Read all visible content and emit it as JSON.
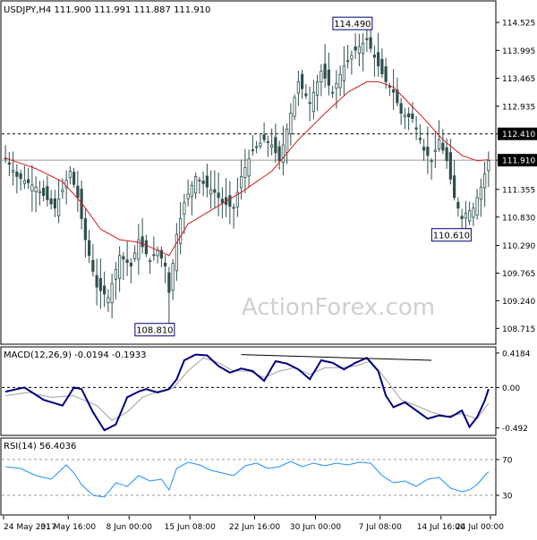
{
  "header": {
    "main": "USDJPY,H4  111.900 111.991 111.887 111.910",
    "macd": "MACD(12,26,9) -0.0194 -0.1933",
    "rsi": "RSI(14) 56.4036"
  },
  "watermark": "ActionForex.com",
  "colors": {
    "bull": "#2f4f4f",
    "ma": "#d41b1b",
    "macd_line": "#000080",
    "signal": "#a0a0a0",
    "rsi": "#1e90ff",
    "label_border": "#000080",
    "label_bg": "#000000"
  },
  "chart_data": [
    {
      "type": "candlestick",
      "title": "USDJPY,H4",
      "ohlc_readout": {
        "open": 111.9,
        "high": 111.991,
        "low": 111.887,
        "close": 111.91
      },
      "ylim": [
        108.5,
        114.85
      ],
      "y_ticks": [
        "114.525",
        "113.995",
        "113.465",
        "112.935",
        "112.410",
        "111.910",
        "111.355",
        "110.830",
        "110.290",
        "109.765",
        "109.240",
        "108.715"
      ],
      "x_ticks": [
        "24 May 2017",
        "31 May 16:00",
        "8 Jun 00:00",
        "15 Jun 08:00",
        "22 Jun 16:00",
        "30 Jun 00:00",
        "7 Jul 08:00",
        "14 Jul 16:00",
        "24 Jul 00:00"
      ],
      "annotations": [
        {
          "text": "114.490",
          "value": 114.49,
          "bar": 95
        },
        {
          "text": "108.810",
          "value": 108.81,
          "bar": 43
        },
        {
          "text": "110.610",
          "value": 110.61,
          "bar": 121
        }
      ],
      "levels": [
        {
          "text": "112.410",
          "value": 112.41,
          "style": "dashed",
          "highlight": true
        },
        {
          "text": "111.910",
          "value": 111.91,
          "style": "solid",
          "highlight": true
        }
      ],
      "close_path": [
        [
          0,
          111.95
        ],
        [
          3,
          111.6
        ],
        [
          8,
          111.4
        ],
        [
          13,
          111.0
        ],
        [
          17,
          111.7
        ],
        [
          19,
          111.2
        ],
        [
          21,
          110.4
        ],
        [
          24,
          109.5
        ],
        [
          27,
          109.3
        ],
        [
          30,
          110.1
        ],
        [
          33,
          109.9
        ],
        [
          35,
          110.4
        ],
        [
          38,
          110.0
        ],
        [
          40,
          110.2
        ],
        [
          42,
          109.9
        ],
        [
          43,
          109.4
        ],
        [
          45,
          110.5
        ],
        [
          47,
          111.1
        ],
        [
          50,
          111.6
        ],
        [
          53,
          111.4
        ],
        [
          55,
          111.3
        ],
        [
          57,
          111.1
        ],
        [
          60,
          111.0
        ],
        [
          62,
          111.6
        ],
        [
          65,
          112.1
        ],
        [
          68,
          112.3
        ],
        [
          70,
          112.2
        ],
        [
          72,
          111.9
        ],
        [
          74,
          112.5
        ],
        [
          77,
          113.4
        ],
        [
          80,
          113.0
        ],
        [
          83,
          113.6
        ],
        [
          86,
          113.2
        ],
        [
          89,
          113.7
        ],
        [
          92,
          114.0
        ],
        [
          95,
          114.2
        ],
        [
          98,
          113.7
        ],
        [
          100,
          113.4
        ],
        [
          102,
          113.2
        ],
        [
          104,
          112.8
        ],
        [
          107,
          112.7
        ],
        [
          110,
          112.1
        ],
        [
          112,
          111.9
        ],
        [
          114,
          112.3
        ],
        [
          116,
          111.9
        ],
        [
          118,
          111.2
        ],
        [
          120,
          110.8
        ],
        [
          121,
          110.9
        ],
        [
          123,
          111.0
        ],
        [
          125,
          111.4
        ],
        [
          127,
          111.9
        ]
      ],
      "ma_path": [
        [
          0,
          111.95
        ],
        [
          8,
          111.75
        ],
        [
          15,
          111.5
        ],
        [
          20,
          111.1
        ],
        [
          25,
          110.6
        ],
        [
          30,
          110.4
        ],
        [
          35,
          110.35
        ],
        [
          40,
          110.2
        ],
        [
          43,
          110.1
        ],
        [
          48,
          110.7
        ],
        [
          55,
          111.0
        ],
        [
          62,
          111.3
        ],
        [
          70,
          111.7
        ],
        [
          77,
          112.3
        ],
        [
          84,
          112.8
        ],
        [
          90,
          113.2
        ],
        [
          95,
          113.4
        ],
        [
          98,
          113.4
        ],
        [
          102,
          113.3
        ],
        [
          106,
          113.0
        ],
        [
          110,
          112.7
        ],
        [
          115,
          112.3
        ],
        [
          120,
          112.0
        ],
        [
          124,
          111.9
        ],
        [
          127,
          111.92
        ]
      ]
    },
    {
      "type": "line",
      "title": "MACD(12,26,9)",
      "readout": {
        "macd": -0.0194,
        "signal": -0.1933
      },
      "ylim": [
        -0.55,
        0.45
      ],
      "y_ticks": [
        "0.4184",
        "0.00",
        "-0.492"
      ],
      "trendline": {
        "from": [
          62,
          0.4
        ],
        "to": [
          112,
          0.33
        ]
      },
      "series": [
        {
          "values": [
            [
              0,
              -0.05
            ],
            [
              5,
              0.0
            ],
            [
              10,
              -0.15
            ],
            [
              15,
              -0.22
            ],
            [
              18,
              0.0
            ],
            [
              20,
              -0.02
            ],
            [
              23,
              -0.3
            ],
            [
              26,
              -0.52
            ],
            [
              29,
              -0.45
            ],
            [
              32,
              -0.12
            ],
            [
              35,
              -0.05
            ],
            [
              37,
              -0.02
            ],
            [
              40,
              -0.06
            ],
            [
              43,
              -0.02
            ],
            [
              45,
              0.1
            ],
            [
              47,
              0.33
            ],
            [
              50,
              0.4
            ],
            [
              53,
              0.39
            ],
            [
              56,
              0.26
            ],
            [
              59,
              0.18
            ],
            [
              62,
              0.23
            ],
            [
              65,
              0.2
            ],
            [
              68,
              0.08
            ],
            [
              71,
              0.32
            ],
            [
              74,
              0.29
            ],
            [
              77,
              0.22
            ],
            [
              80,
              0.1
            ],
            [
              83,
              0.33
            ],
            [
              86,
              0.3
            ],
            [
              89,
              0.22
            ],
            [
              92,
              0.3
            ],
            [
              95,
              0.36
            ],
            [
              98,
              0.2
            ],
            [
              100,
              -0.1
            ],
            [
              102,
              -0.24
            ],
            [
              105,
              -0.18
            ],
            [
              108,
              -0.28
            ],
            [
              111,
              -0.38
            ],
            [
              114,
              -0.34
            ],
            [
              117,
              -0.36
            ],
            [
              120,
              -0.28
            ],
            [
              122,
              -0.48
            ],
            [
              124,
              -0.36
            ],
            [
              126,
              -0.16
            ],
            [
              127,
              -0.02
            ]
          ]
        },
        {
          "values": [
            [
              0,
              -0.1
            ],
            [
              6,
              -0.06
            ],
            [
              12,
              -0.12
            ],
            [
              18,
              -0.1
            ],
            [
              24,
              -0.22
            ],
            [
              28,
              -0.4
            ],
            [
              32,
              -0.3
            ],
            [
              36,
              -0.12
            ],
            [
              40,
              -0.05
            ],
            [
              44,
              -0.01
            ],
            [
              48,
              0.2
            ],
            [
              52,
              0.36
            ],
            [
              56,
              0.3
            ],
            [
              60,
              0.2
            ],
            [
              64,
              0.2
            ],
            [
              68,
              0.12
            ],
            [
              72,
              0.2
            ],
            [
              76,
              0.24
            ],
            [
              80,
              0.16
            ],
            [
              84,
              0.24
            ],
            [
              88,
              0.24
            ],
            [
              92,
              0.26
            ],
            [
              96,
              0.32
            ],
            [
              100,
              0.1
            ],
            [
              104,
              -0.15
            ],
            [
              108,
              -0.22
            ],
            [
              112,
              -0.3
            ],
            [
              116,
              -0.35
            ],
            [
              120,
              -0.32
            ],
            [
              124,
              -0.38
            ],
            [
              127,
              -0.19
            ]
          ]
        }
      ]
    },
    {
      "type": "line",
      "title": "RSI(14)",
      "value": 56.4036,
      "ylim": [
        10,
        90
      ],
      "y_ticks": [
        "70",
        "30"
      ],
      "levels": [
        70,
        30
      ],
      "series": [
        {
          "values": [
            [
              0,
              62
            ],
            [
              4,
              60
            ],
            [
              8,
              52
            ],
            [
              12,
              48
            ],
            [
              16,
              64
            ],
            [
              18,
              55
            ],
            [
              20,
              42
            ],
            [
              23,
              30
            ],
            [
              26,
              28
            ],
            [
              29,
              44
            ],
            [
              32,
              40
            ],
            [
              35,
              52
            ],
            [
              38,
              46
            ],
            [
              41,
              48
            ],
            [
              43,
              36
            ],
            [
              45,
              60
            ],
            [
              48,
              67
            ],
            [
              51,
              64
            ],
            [
              54,
              58
            ],
            [
              57,
              55
            ],
            [
              60,
              52
            ],
            [
              63,
              63
            ],
            [
              66,
              66
            ],
            [
              69,
              60
            ],
            [
              72,
              62
            ],
            [
              75,
              68
            ],
            [
              78,
              62
            ],
            [
              81,
              66
            ],
            [
              84,
              63
            ],
            [
              87,
              66
            ],
            [
              90,
              64
            ],
            [
              93,
              67
            ],
            [
              96,
              66
            ],
            [
              99,
              52
            ],
            [
              102,
              44
            ],
            [
              105,
              46
            ],
            [
              108,
              40
            ],
            [
              111,
              48
            ],
            [
              114,
              50
            ],
            [
              117,
              38
            ],
            [
              120,
              34
            ],
            [
              122,
              36
            ],
            [
              124,
              42
            ],
            [
              126,
              52
            ],
            [
              127,
              56.4
            ]
          ]
        }
      ]
    }
  ]
}
